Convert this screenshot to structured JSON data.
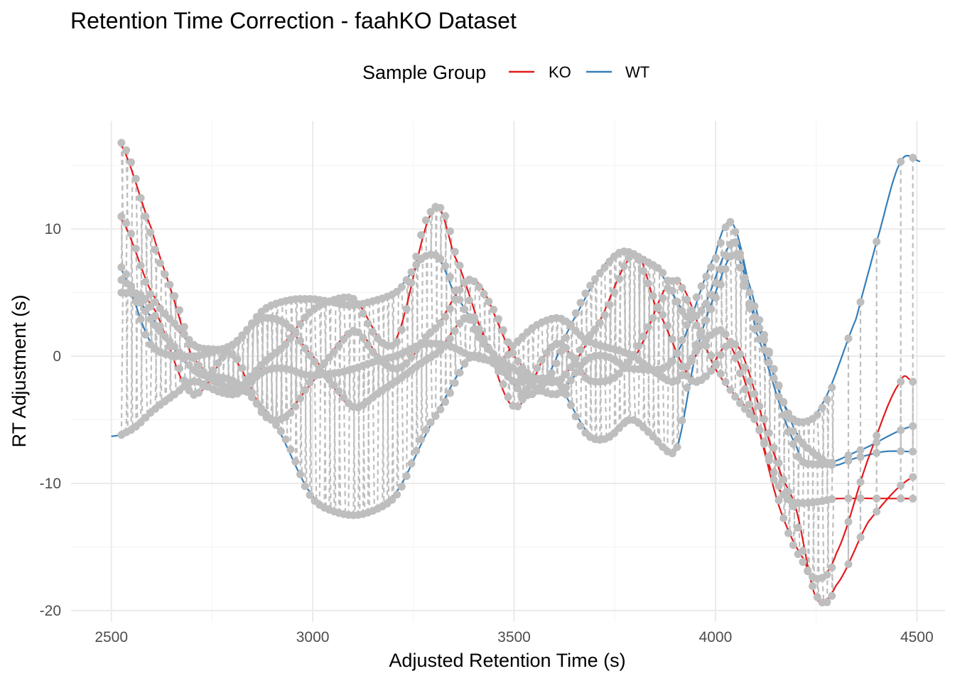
{
  "chart_data": {
    "type": "line",
    "title": "Retention Time Correction - faahKO Dataset",
    "xlabel": "Adjusted Retention Time (s)",
    "ylabel": "RT Adjustment (s)",
    "xlim": [
      2400,
      4570
    ],
    "ylim": [
      -20.9,
      18.5
    ],
    "x_ticks": [
      2500,
      3000,
      3500,
      4000,
      4500
    ],
    "y_ticks": [
      -20,
      -10,
      0,
      10
    ],
    "grid": true,
    "legend": {
      "title": "Sample Group",
      "placement": "top",
      "entries": [
        {
          "label": "KO",
          "color": "#E41A1C"
        },
        {
          "label": "WT",
          "color": "#377EB8"
        }
      ]
    },
    "peak_group_color": "#BEBEBE",
    "series": [
      {
        "group": "WT",
        "points": [
          [
            2500,
            -6.3
          ],
          [
            2530,
            -6
          ],
          [
            2600,
            -4.5
          ],
          [
            2700,
            -2
          ],
          [
            2800,
            -3
          ],
          [
            2900,
            -1
          ],
          [
            3000,
            -1.5
          ],
          [
            3100,
            -1
          ],
          [
            3200,
            0
          ],
          [
            3300,
            1
          ],
          [
            3400,
            0
          ],
          [
            3500,
            -1
          ],
          [
            3600,
            -3
          ],
          [
            3700,
            0
          ],
          [
            3800,
            -1
          ],
          [
            3900,
            0
          ],
          [
            4000,
            8
          ],
          [
            4040,
            10.5
          ],
          [
            4080,
            6
          ],
          [
            4150,
            -2
          ],
          [
            4200,
            -5
          ],
          [
            4260,
            -4
          ],
          [
            4350,
            3
          ],
          [
            4400,
            9
          ],
          [
            4460,
            15.3
          ],
          [
            4510,
            15.3
          ]
        ]
      },
      {
        "group": "WT",
        "points": [
          [
            2520,
            6
          ],
          [
            2600,
            3
          ],
          [
            2700,
            -1
          ],
          [
            2800,
            -2
          ],
          [
            2900,
            -5
          ],
          [
            3000,
            -11
          ],
          [
            3100,
            -12.5
          ],
          [
            3200,
            -11
          ],
          [
            3300,
            -5
          ],
          [
            3400,
            0
          ],
          [
            3500,
            -2
          ],
          [
            3600,
            -2
          ],
          [
            3700,
            -6.5
          ],
          [
            3800,
            -5
          ],
          [
            3900,
            -7.5
          ],
          [
            3950,
            0
          ],
          [
            4000,
            5
          ],
          [
            4050,
            8
          ],
          [
            4100,
            3
          ],
          [
            4150,
            -2
          ],
          [
            4200,
            -6
          ],
          [
            4280,
            -8.5
          ],
          [
            4350,
            -8
          ],
          [
            4420,
            -7.5
          ],
          [
            4490,
            -7.5
          ]
        ]
      },
      {
        "group": "WT",
        "points": [
          [
            2520,
            7
          ],
          [
            2600,
            1
          ],
          [
            2700,
            0
          ],
          [
            2800,
            1
          ],
          [
            2900,
            4
          ],
          [
            3000,
            4.5
          ],
          [
            3100,
            4
          ],
          [
            3200,
            5
          ],
          [
            3300,
            8
          ],
          [
            3350,
            5
          ],
          [
            3450,
            0
          ],
          [
            3550,
            -3
          ],
          [
            3650,
            3
          ],
          [
            3750,
            8
          ],
          [
            3850,
            7
          ],
          [
            3950,
            3
          ],
          [
            4050,
            9
          ],
          [
            4100,
            2
          ],
          [
            4200,
            -7
          ],
          [
            4250,
            -8.5
          ],
          [
            4350,
            -7.5
          ],
          [
            4490,
            -5.5
          ]
        ]
      },
      {
        "group": "KO",
        "points": [
          [
            2520,
            16.8
          ],
          [
            2600,
            10
          ],
          [
            2650,
            5
          ],
          [
            2700,
            0
          ],
          [
            2800,
            -2.5
          ],
          [
            2900,
            0
          ],
          [
            3000,
            3.5
          ],
          [
            3100,
            4.5
          ],
          [
            3200,
            1
          ],
          [
            3300,
            11.5
          ],
          [
            3350,
            8
          ],
          [
            3450,
            0
          ],
          [
            3500,
            1
          ],
          [
            3600,
            3
          ],
          [
            3700,
            1
          ],
          [
            3800,
            0
          ],
          [
            3900,
            -2
          ],
          [
            4000,
            2
          ],
          [
            4050,
            0
          ],
          [
            4100,
            -5
          ],
          [
            4160,
            -12
          ],
          [
            4220,
            -16
          ],
          [
            4250,
            -17.5
          ],
          [
            4300,
            -15.5
          ],
          [
            4380,
            -8
          ],
          [
            4460,
            -2
          ],
          [
            4490,
            -2
          ]
        ]
      },
      {
        "group": "KO",
        "points": [
          [
            2520,
            11
          ],
          [
            2600,
            5
          ],
          [
            2700,
            1
          ],
          [
            2800,
            0
          ],
          [
            2900,
            -5
          ],
          [
            3000,
            -2
          ],
          [
            3100,
            2
          ],
          [
            3200,
            -1
          ],
          [
            3300,
            2
          ],
          [
            3400,
            6
          ],
          [
            3500,
            0
          ],
          [
            3600,
            -2
          ],
          [
            3700,
            2
          ],
          [
            3800,
            8
          ],
          [
            3850,
            4
          ],
          [
            3950,
            -2
          ],
          [
            4050,
            1
          ],
          [
            4150,
            -8
          ],
          [
            4200,
            -12
          ],
          [
            4250,
            -19
          ],
          [
            4300,
            -18
          ],
          [
            4380,
            -13
          ],
          [
            4490,
            -9.5
          ]
        ]
      },
      {
        "group": "KO",
        "points": [
          [
            2520,
            5
          ],
          [
            2600,
            4
          ],
          [
            2700,
            -3
          ],
          [
            2800,
            1
          ],
          [
            2900,
            3
          ],
          [
            3000,
            0
          ],
          [
            3100,
            -4
          ],
          [
            3200,
            -2
          ],
          [
            3300,
            0
          ],
          [
            3400,
            3
          ],
          [
            3500,
            -4
          ],
          [
            3600,
            1
          ],
          [
            3700,
            -2
          ],
          [
            3800,
            0
          ],
          [
            3900,
            6
          ],
          [
            4000,
            -1
          ],
          [
            4100,
            -5
          ],
          [
            4150,
            -10
          ],
          [
            4200,
            -11.5
          ],
          [
            4300,
            -11.2
          ],
          [
            4490,
            -11.2
          ]
        ]
      }
    ]
  }
}
